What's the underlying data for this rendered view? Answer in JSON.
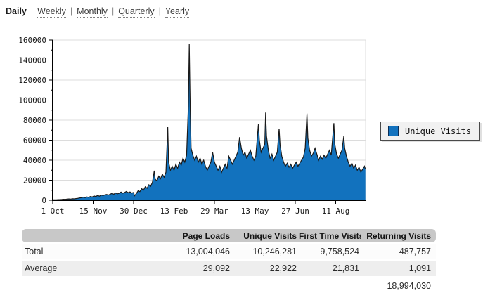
{
  "nav": {
    "items": [
      {
        "id": "daily",
        "label": "Daily",
        "active": true
      },
      {
        "id": "weekly",
        "label": "Weekly",
        "active": false
      },
      {
        "id": "monthly",
        "label": "Monthly",
        "active": false
      },
      {
        "id": "quarterly",
        "label": "Quarterly",
        "active": false
      },
      {
        "id": "yearly",
        "label": "Yearly",
        "active": false
      }
    ],
    "separator": "|"
  },
  "legend": {
    "label": "Unique Visits",
    "swatch_color": "#1272be"
  },
  "colors": {
    "area_fill": "#1272be",
    "area_outline": "#1a1a1a",
    "grid": "#dcdcdc",
    "axis": "#000000",
    "table_header_bg": "#c8c8c8",
    "table_alt_row_bg": "#eeeeee",
    "legend_bg": "#f1f1f1"
  },
  "chart_data": {
    "type": "area",
    "title": "",
    "series_name": "Unique Visits",
    "legend_position": "right",
    "grid": "horizontal",
    "ylim": [
      0,
      160000
    ],
    "y_tick_step": 20000,
    "y_minor_tick_step": 10000,
    "y_tick_labels": [
      "0",
      "20000",
      "40000",
      "60000",
      "80000",
      "100000",
      "120000",
      "140000",
      "160000"
    ],
    "x_unit": "days since 1 Oct",
    "x_tick_days": [
      0,
      45,
      90,
      135,
      180,
      225,
      270,
      315
    ],
    "x_tick_labels": [
      "1 Oct",
      "15 Nov",
      "30 Dec",
      "13 Feb",
      "29 Mar",
      "13 May",
      "27 Jun",
      "11 Aug"
    ],
    "points": [
      [
        0,
        400
      ],
      [
        2,
        450
      ],
      [
        4,
        520
      ],
      [
        6,
        600
      ],
      [
        8,
        650
      ],
      [
        10,
        800
      ],
      [
        12,
        950
      ],
      [
        14,
        900
      ],
      [
        16,
        1100
      ],
      [
        18,
        1300
      ],
      [
        20,
        1200
      ],
      [
        22,
        1500
      ],
      [
        24,
        1400
      ],
      [
        26,
        1700
      ],
      [
        28,
        2000
      ],
      [
        30,
        2300
      ],
      [
        32,
        2600
      ],
      [
        34,
        3100
      ],
      [
        36,
        2700
      ],
      [
        38,
        3400
      ],
      [
        40,
        2900
      ],
      [
        42,
        3800
      ],
      [
        44,
        3300
      ],
      [
        46,
        4300
      ],
      [
        48,
        3700
      ],
      [
        50,
        4800
      ],
      [
        52,
        4100
      ],
      [
        54,
        5200
      ],
      [
        56,
        4600
      ],
      [
        58,
        5400
      ],
      [
        60,
        5800
      ],
      [
        62,
        5200
      ],
      [
        64,
        6100
      ],
      [
        66,
        6800
      ],
      [
        68,
        6000
      ],
      [
        70,
        7300
      ],
      [
        72,
        6400
      ],
      [
        74,
        7000
      ],
      [
        76,
        8200
      ],
      [
        78,
        7100
      ],
      [
        80,
        7800
      ],
      [
        82,
        8800
      ],
      [
        84,
        7600
      ],
      [
        86,
        8300
      ],
      [
        88,
        7200
      ],
      [
        90,
        7800
      ],
      [
        91,
        4500
      ],
      [
        93,
        6500
      ],
      [
        95,
        9500
      ],
      [
        97,
        8600
      ],
      [
        99,
        11500
      ],
      [
        101,
        10200
      ],
      [
        103,
        13500
      ],
      [
        105,
        12000
      ],
      [
        107,
        15500
      ],
      [
        109,
        14000
      ],
      [
        111,
        18000
      ],
      [
        113,
        29500
      ],
      [
        114,
        21000
      ],
      [
        116,
        19500
      ],
      [
        118,
        24000
      ],
      [
        120,
        21500
      ],
      [
        122,
        26000
      ],
      [
        124,
        23000
      ],
      [
        126,
        28000
      ],
      [
        128,
        73000
      ],
      [
        129,
        38000
      ],
      [
        131,
        30000
      ],
      [
        133,
        34000
      ],
      [
        135,
        30000
      ],
      [
        137,
        36000
      ],
      [
        139,
        32000
      ],
      [
        141,
        38000
      ],
      [
        143,
        35000
      ],
      [
        145,
        42000
      ],
      [
        147,
        38000
      ],
      [
        149,
        45000
      ],
      [
        151,
        94000
      ],
      [
        152,
        156000
      ],
      [
        153,
        94000
      ],
      [
        154,
        52000
      ],
      [
        156,
        45000
      ],
      [
        158,
        40000
      ],
      [
        160,
        44000
      ],
      [
        162,
        38000
      ],
      [
        164,
        42000
      ],
      [
        166,
        36000
      ],
      [
        168,
        40000
      ],
      [
        170,
        34000
      ],
      [
        172,
        30000
      ],
      [
        174,
        34000
      ],
      [
        176,
        38000
      ],
      [
        178,
        48000
      ],
      [
        180,
        38000
      ],
      [
        182,
        34000
      ],
      [
        184,
        30000
      ],
      [
        186,
        34000
      ],
      [
        188,
        28000
      ],
      [
        190,
        32000
      ],
      [
        192,
        36000
      ],
      [
        194,
        32000
      ],
      [
        196,
        44000
      ],
      [
        198,
        40000
      ],
      [
        200,
        36000
      ],
      [
        202,
        40000
      ],
      [
        204,
        44000
      ],
      [
        206,
        48000
      ],
      [
        208,
        63000
      ],
      [
        210,
        52000
      ],
      [
        212,
        45000
      ],
      [
        214,
        48000
      ],
      [
        216,
        42000
      ],
      [
        218,
        46000
      ],
      [
        220,
        50000
      ],
      [
        222,
        44000
      ],
      [
        224,
        40000
      ],
      [
        226,
        44000
      ],
      [
        229,
        76500
      ],
      [
        230,
        60000
      ],
      [
        232,
        48000
      ],
      [
        234,
        52000
      ],
      [
        236,
        56000
      ],
      [
        237,
        87500
      ],
      [
        238,
        64000
      ],
      [
        240,
        50000
      ],
      [
        242,
        42000
      ],
      [
        244,
        46000
      ],
      [
        246,
        40000
      ],
      [
        248,
        44000
      ],
      [
        250,
        48000
      ],
      [
        252,
        71500
      ],
      [
        253,
        56000
      ],
      [
        255,
        44000
      ],
      [
        257,
        38000
      ],
      [
        259,
        34000
      ],
      [
        261,
        37000
      ],
      [
        263,
        33000
      ],
      [
        265,
        36000
      ],
      [
        267,
        32000
      ],
      [
        269,
        35000
      ],
      [
        271,
        38000
      ],
      [
        273,
        34000
      ],
      [
        275,
        37000
      ],
      [
        277,
        40000
      ],
      [
        279,
        43000
      ],
      [
        281,
        52000
      ],
      [
        283,
        86500
      ],
      [
        284,
        62000
      ],
      [
        286,
        50000
      ],
      [
        288,
        44000
      ],
      [
        290,
        47000
      ],
      [
        292,
        52000
      ],
      [
        294,
        46000
      ],
      [
        296,
        40000
      ],
      [
        298,
        44000
      ],
      [
        300,
        41000
      ],
      [
        302,
        45000
      ],
      [
        304,
        42000
      ],
      [
        306,
        46000
      ],
      [
        308,
        50000
      ],
      [
        310,
        45000
      ],
      [
        313,
        77000
      ],
      [
        314,
        56000
      ],
      [
        316,
        46000
      ],
      [
        318,
        42000
      ],
      [
        320,
        46000
      ],
      [
        322,
        50000
      ],
      [
        324,
        64000
      ],
      [
        325,
        52000
      ],
      [
        327,
        44000
      ],
      [
        329,
        38000
      ],
      [
        331,
        34000
      ],
      [
        333,
        37000
      ],
      [
        335,
        32000
      ],
      [
        337,
        35000
      ],
      [
        339,
        30000
      ],
      [
        341,
        33000
      ],
      [
        343,
        28000
      ],
      [
        345,
        31000
      ],
      [
        347,
        34000
      ],
      [
        348,
        31000
      ]
    ]
  },
  "table": {
    "columns": [
      "",
      "Page Loads",
      "Unique Visits",
      "First Time Visits",
      "Returning Visits"
    ],
    "rows": [
      {
        "label": "Total",
        "values": [
          "13,004,046",
          "10,246,281",
          "9,758,524",
          "487,757"
        ]
      },
      {
        "label": "Average",
        "values": [
          "29,092",
          "22,922",
          "21,831",
          "1,091"
        ]
      }
    ],
    "footer_value": "18,994,030"
  }
}
